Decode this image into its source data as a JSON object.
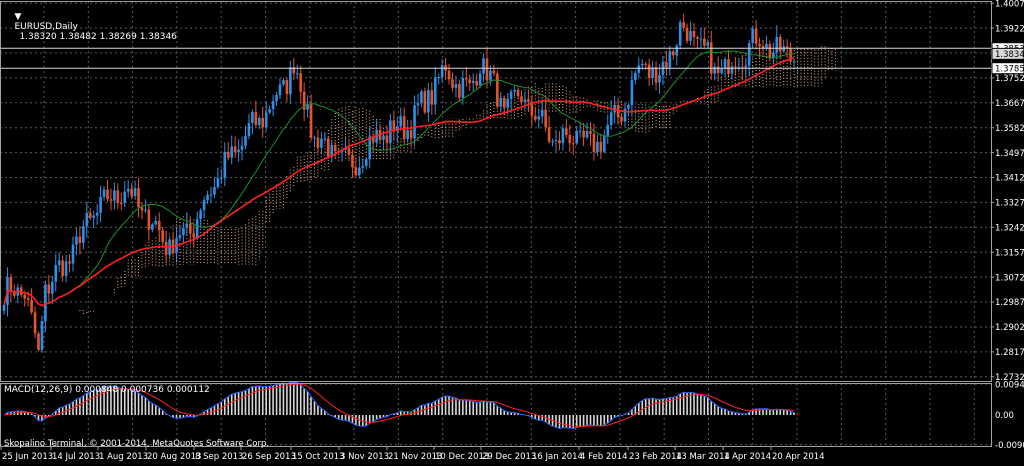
{
  "window": {
    "symbol_title": "EURUSD,Daily",
    "ohlc_readout": "1.38320 1.38482 1.38269 1.38346",
    "copyright": "Skopalino Terminal, © 2001-2014, MetaQuotes Software Corp."
  },
  "colors": {
    "background": "#000000",
    "grid": "#5a5a5a",
    "bull_candle": "#2f8fe6",
    "bear_candle": "#e8542a",
    "ma_fast": "#1f8f2a",
    "ma_slow": "#ff2020",
    "cloud": "#e8b090",
    "macd_hist": "#d8d8d8",
    "macd_line": "#2f5fff",
    "signal_line": "#ff2020",
    "axis_text": "#ffffff",
    "frame": "#a0a0a0"
  },
  "price_panel": {
    "y_ticks": [
      "1.40075",
      "1.39225",
      "1.38537",
      "1.38346",
      "1.37856",
      "1.37525",
      "1.36675",
      "1.35825",
      "1.34975",
      "1.34125",
      "1.33275",
      "1.32425",
      "1.31575",
      "1.30725",
      "1.29875",
      "1.29025",
      "1.28175",
      "1.27325"
    ],
    "grid_ticks": [
      1.40075,
      1.39225,
      1.38375,
      1.37525,
      1.36675,
      1.35825,
      1.34975,
      1.34125,
      1.33275,
      1.32425,
      1.31575,
      1.30725,
      1.29875,
      1.29025,
      1.28175,
      1.27325
    ],
    "ylim": [
      1.2718,
      1.4015
    ],
    "horizontal_levels": [
      1.38537,
      1.37856
    ],
    "bid_price": 1.38346
  },
  "macd_panel": {
    "label": "MACD(12,26,9) 0.000848 0.000736 0.000112",
    "y_ticks": [
      "0.009437",
      "0.00",
      "-0.009086"
    ],
    "ylim": [
      -0.0095,
      0.0098
    ]
  },
  "time_axis": {
    "labels": [
      "25 Jun 2013",
      "14 Jul 2013",
      "1 Aug 2013",
      "20 Aug 2013",
      "8 Sep 2013",
      "26 Sep 2013",
      "15 Oct 2013",
      "3 Nov 2013",
      "21 Nov 2013",
      "10 Dec 2013",
      "29 Dec 2013",
      "16 Jan 2014",
      "4 Feb 2014",
      "23 Feb 2014",
      "13 Mar 2014",
      "1 Apr 2014",
      "20 Apr 2014"
    ]
  },
  "chart_data": {
    "type": "candlestick",
    "symbol": "EURUSD",
    "timeframe": "Daily",
    "start_date": "2013-06-25",
    "close_anchors": [
      [
        0,
        1.302
      ],
      [
        6,
        1.303
      ],
      [
        10,
        1.28
      ],
      [
        12,
        1.304
      ],
      [
        18,
        1.312
      ],
      [
        26,
        1.329
      ],
      [
        35,
        1.338
      ],
      [
        40,
        1.33
      ],
      [
        48,
        1.318
      ],
      [
        55,
        1.325
      ],
      [
        60,
        1.338
      ],
      [
        70,
        1.355
      ],
      [
        80,
        1.37
      ],
      [
        84,
        1.38
      ],
      [
        90,
        1.355
      ],
      [
        95,
        1.35
      ],
      [
        100,
        1.345
      ],
      [
        108,
        1.355
      ],
      [
        118,
        1.36
      ],
      [
        128,
        1.378
      ],
      [
        135,
        1.37
      ],
      [
        138,
        1.382
      ],
      [
        145,
        1.364
      ],
      [
        150,
        1.369
      ],
      [
        160,
        1.353
      ],
      [
        165,
        1.356
      ],
      [
        170,
        1.351
      ],
      [
        178,
        1.362
      ],
      [
        185,
        1.38
      ],
      [
        190,
        1.376
      ],
      [
        196,
        1.392
      ],
      [
        202,
        1.386
      ],
      [
        206,
        1.377
      ],
      [
        212,
        1.381
      ],
      [
        216,
        1.387
      ],
      [
        220,
        1.388
      ],
      [
        225,
        1.383
      ],
      [
        229,
        1.3835
      ]
    ]
  }
}
